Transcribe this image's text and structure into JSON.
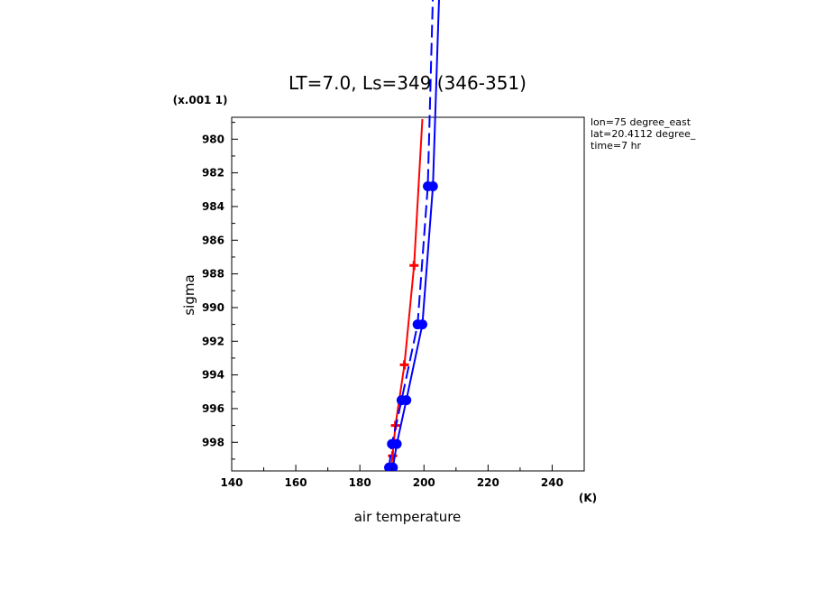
{
  "chart_data": {
    "type": "line",
    "title": "LT=7.0, Ls=349 (346-351)",
    "xlabel": "air temperature",
    "ylabel": "sigma",
    "x_unit": "(K)",
    "y_unit": "(x.001 1)",
    "xlim": [
      140,
      250
    ],
    "ylim": [
      999.7,
      978.7
    ],
    "x_ticks": [
      140,
      160,
      180,
      200,
      220,
      240
    ],
    "y_ticks": [
      980,
      982,
      984,
      986,
      988,
      990,
      992,
      994,
      996,
      998
    ],
    "grid": false,
    "annotations": [
      "lon=75 degree_east",
      "lat=20.4112 degree_",
      "time=7 hr"
    ],
    "series": [
      {
        "color": "#ff0000",
        "style": "solid",
        "marker": "plus",
        "points": [
          [
            199.5,
            978.8
          ],
          [
            196.9,
            987.5
          ],
          [
            193.9,
            993.4
          ],
          [
            191.1,
            997.0
          ],
          [
            190.2,
            998.8
          ],
          [
            189.7,
            999.6
          ]
        ]
      },
      {
        "color": "#0000ff",
        "style": "solid",
        "marker": "circle",
        "points": [
          [
            205.0,
            970.0
          ],
          [
            202.8,
            982.8
          ],
          [
            199.5,
            991.0
          ],
          [
            194.5,
            995.5
          ],
          [
            191.5,
            998.1
          ],
          [
            190.3,
            999.5
          ]
        ]
      },
      {
        "color": "#0000ff",
        "style": "dashed",
        "marker": "circle",
        "points": [
          [
            203.0,
            970.0
          ],
          [
            201.2,
            982.8
          ],
          [
            198.0,
            991.0
          ],
          [
            193.0,
            995.5
          ],
          [
            190.0,
            998.1
          ],
          [
            189.1,
            999.5
          ]
        ]
      }
    ]
  }
}
